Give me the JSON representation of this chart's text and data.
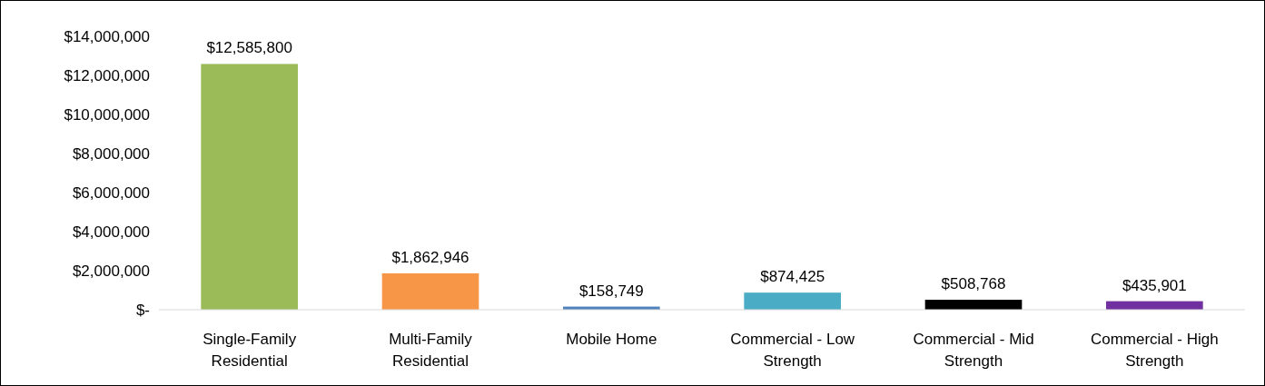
{
  "chart_data": {
    "type": "bar",
    "categories": [
      "Single-Family Residential",
      "Multi-Family Residential",
      "Mobile Home",
      "Commercial - Low Strength",
      "Commercial - Mid Strength",
      "Commercial - High Strength"
    ],
    "values": [
      12585800,
      1862946,
      158749,
      874425,
      508768,
      435901
    ],
    "colors": [
      "#9bbb59",
      "#f79646",
      "#4f81bd",
      "#4bacc6",
      "#000000",
      "#7030a0"
    ],
    "value_labels": [
      "$12,585,800",
      "$1,862,946",
      "$158,749",
      "$874,425",
      "$508,768",
      "$435,901"
    ],
    "ylim": [
      0,
      14000000
    ],
    "yticks": [
      {
        "value": 0,
        "label": "$-"
      },
      {
        "value": 2000000,
        "label": "$2,000,000"
      },
      {
        "value": 4000000,
        "label": "$4,000,000"
      },
      {
        "value": 6000000,
        "label": "$6,000,000"
      },
      {
        "value": 8000000,
        "label": "$8,000,000"
      },
      {
        "value": 10000000,
        "label": "$10,000,000"
      },
      {
        "value": 12000000,
        "label": "$12,000,000"
      },
      {
        "value": 14000000,
        "label": "$14,000,000"
      }
    ],
    "grid": false
  }
}
